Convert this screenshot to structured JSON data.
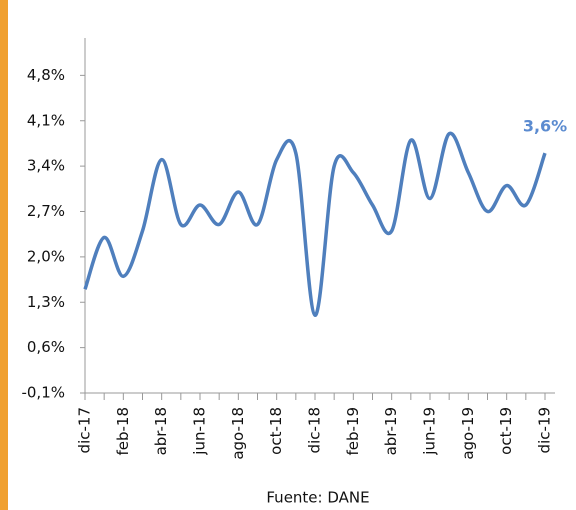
{
  "chart_data": {
    "type": "line",
    "categories": [
      "dic-17",
      null,
      "feb-18",
      null,
      "abr-18",
      null,
      "jun-18",
      null,
      "ago-18",
      null,
      "oct-18",
      null,
      "dic-18",
      null,
      "feb-19",
      null,
      "abr-19",
      null,
      "jun-19",
      null,
      "ago-19",
      null,
      "oct-19",
      null,
      "dic-19"
    ],
    "series": [
      {
        "color": "#4f7fbd",
        "values": [
          1.5,
          2.3,
          1.7,
          2.4,
          3.5,
          2.5,
          2.8,
          2.5,
          3.0,
          2.5,
          3.5,
          3.6,
          1.1,
          3.4,
          3.3,
          2.8,
          2.4,
          3.8,
          2.9,
          3.9,
          3.3,
          2.7,
          3.1,
          2.8,
          3.6
        ],
        "value_labels": [
          null,
          null,
          null,
          null,
          null,
          null,
          null,
          null,
          null,
          null,
          null,
          null,
          null,
          null,
          null,
          null,
          null,
          null,
          null,
          null,
          null,
          null,
          null,
          null,
          "3,6%"
        ]
      }
    ],
    "ylim": [
      -0.1,
      5.5
    ],
    "yticks": [
      {
        "value": -0.1,
        "label": "-0,1%"
      },
      {
        "value": 0.6,
        "label": "0,6%"
      },
      {
        "value": 1.3,
        "label": "1,3%"
      },
      {
        "value": 2.0,
        "label": "2,0%"
      },
      {
        "value": 2.7,
        "label": "2,7%"
      },
      {
        "value": 3.4,
        "label": "3,4%"
      },
      {
        "value": 4.1,
        "label": "4,1%"
      },
      {
        "value": 4.8,
        "label": "4,8%"
      }
    ],
    "source": "Fuente: DANE"
  }
}
